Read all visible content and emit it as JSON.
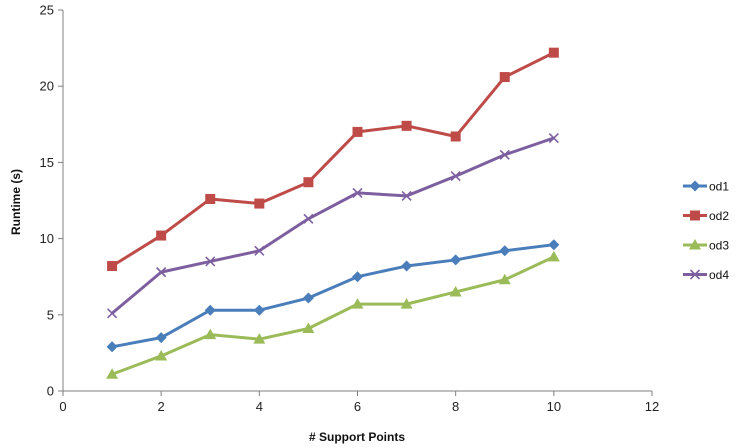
{
  "chart_data": {
    "type": "line",
    "title": "",
    "xlabel": "# Support Points",
    "ylabel": "Runtime (s)",
    "xlim": [
      0,
      12
    ],
    "ylim": [
      0,
      25
    ],
    "x_ticks": [
      0,
      2,
      4,
      6,
      8,
      10,
      12
    ],
    "y_ticks": [
      0,
      5,
      10,
      15,
      20,
      25
    ],
    "grid": false,
    "legend_position": "right",
    "x": [
      1,
      2,
      3,
      4,
      5,
      6,
      7,
      8,
      9,
      10
    ],
    "series": [
      {
        "name": "od1",
        "color": "#4A7EBB",
        "marker": "diamond",
        "values": [
          2.9,
          3.5,
          5.3,
          5.3,
          6.1,
          7.5,
          8.2,
          8.6,
          9.2,
          9.6
        ]
      },
      {
        "name": "od2",
        "color": "#BE4B48",
        "marker": "square",
        "values": [
          8.2,
          10.2,
          12.6,
          12.3,
          13.7,
          17.0,
          17.4,
          16.7,
          20.6,
          22.2
        ]
      },
      {
        "name": "od3",
        "color": "#9BBB59",
        "marker": "triangle",
        "values": [
          1.1,
          2.3,
          3.7,
          3.4,
          4.1,
          5.7,
          5.7,
          6.5,
          7.3,
          8.8
        ]
      },
      {
        "name": "od4",
        "color": "#7D5FA0",
        "marker": "x",
        "values": [
          5.1,
          7.8,
          8.5,
          9.2,
          11.3,
          13.0,
          12.8,
          14.1,
          15.5,
          16.6
        ]
      }
    ]
  }
}
